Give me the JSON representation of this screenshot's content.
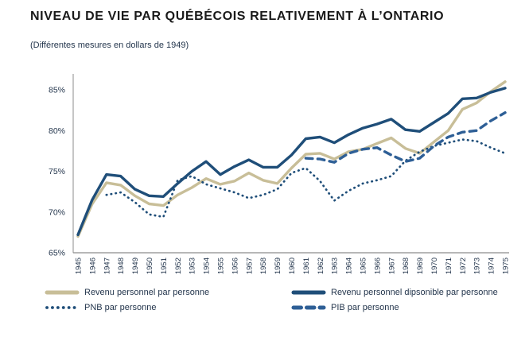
{
  "header": {
    "title": "NIVEAU DE VIE PAR QUÉBÉCOIS RELATIVEMENT À L’ONTARIO",
    "subtitle": "(Différentes mesures en dollars de 1949)"
  },
  "colors": {
    "dark_blue": "#1F4E79",
    "medium_blue": "#2E5F96",
    "beige": "#C8BE98",
    "axis_gray": "#8C8C8C",
    "text_navy": "#24364D",
    "title_color": "#1A1A1A"
  },
  "chart_data": {
    "type": "line",
    "x": [
      1945,
      1946,
      1947,
      1948,
      1949,
      1950,
      1951,
      1952,
      1953,
      1954,
      1955,
      1956,
      1957,
      1958,
      1959,
      1960,
      1961,
      1962,
      1963,
      1964,
      1965,
      1966,
      1967,
      1968,
      1969,
      1970,
      1971,
      1972,
      1973,
      1974,
      1975
    ],
    "title": "NIVEAU DE VIE PAR QUÉBÉCOIS RELATIVEMENT À L’ONTARIO",
    "subtitle": "(Différentes mesures en dollars de 1949)",
    "xlabel": "",
    "ylabel": "",
    "ylim": [
      65,
      87
    ],
    "yticks": [
      65,
      70,
      75,
      80,
      85
    ],
    "ytick_suffix": "%",
    "grid": false,
    "legend_position": "bottom",
    "series": [
      {
        "name": "Revenu personnel par personne",
        "style": "solid",
        "color_key": "beige",
        "start_year": 1945,
        "values": [
          67.0,
          71.0,
          73.6,
          73.3,
          72.0,
          71.0,
          70.8,
          72.1,
          73.0,
          74.1,
          73.4,
          73.8,
          74.8,
          73.9,
          73.5,
          75.4,
          77.1,
          77.2,
          76.5,
          77.4,
          77.7,
          78.4,
          79.1,
          77.8,
          77.2,
          78.6,
          80.0,
          82.6,
          83.4,
          84.8,
          86.0
        ]
      },
      {
        "name": "Revenu personnel dipsonible par personne",
        "style": "solid",
        "color_key": "dark_blue",
        "start_year": 1945,
        "values": [
          67.2,
          71.5,
          74.6,
          74.4,
          72.8,
          72.0,
          71.9,
          73.5,
          75.0,
          76.2,
          74.6,
          75.6,
          76.4,
          75.5,
          75.5,
          77.0,
          79.0,
          79.2,
          78.5,
          79.5,
          80.3,
          80.8,
          81.4,
          80.1,
          79.9,
          81.0,
          82.1,
          83.9,
          84.0,
          84.7,
          85.2
        ]
      },
      {
        "name": "PNB par personne",
        "style": "dotted",
        "color_key": "dark_blue",
        "start_year": 1947,
        "values": [
          72.1,
          72.4,
          71.2,
          69.7,
          69.4,
          73.9,
          74.4,
          73.4,
          72.9,
          72.4,
          71.7,
          72.1,
          72.8,
          74.8,
          75.4,
          73.8,
          71.4,
          72.6,
          73.5,
          73.9,
          74.4,
          76.3,
          77.4,
          78.1,
          78.5,
          78.9,
          78.7,
          77.9,
          77.2
        ]
      },
      {
        "name": "PIB par personne",
        "style": "dashed",
        "color_key": "medium_blue",
        "start_year": 1961,
        "values": [
          76.6,
          76.5,
          76.1,
          77.2,
          77.7,
          77.9,
          77.0,
          76.2,
          76.6,
          78.1,
          79.2,
          79.8,
          80.0,
          81.2,
          82.2
        ]
      }
    ]
  }
}
